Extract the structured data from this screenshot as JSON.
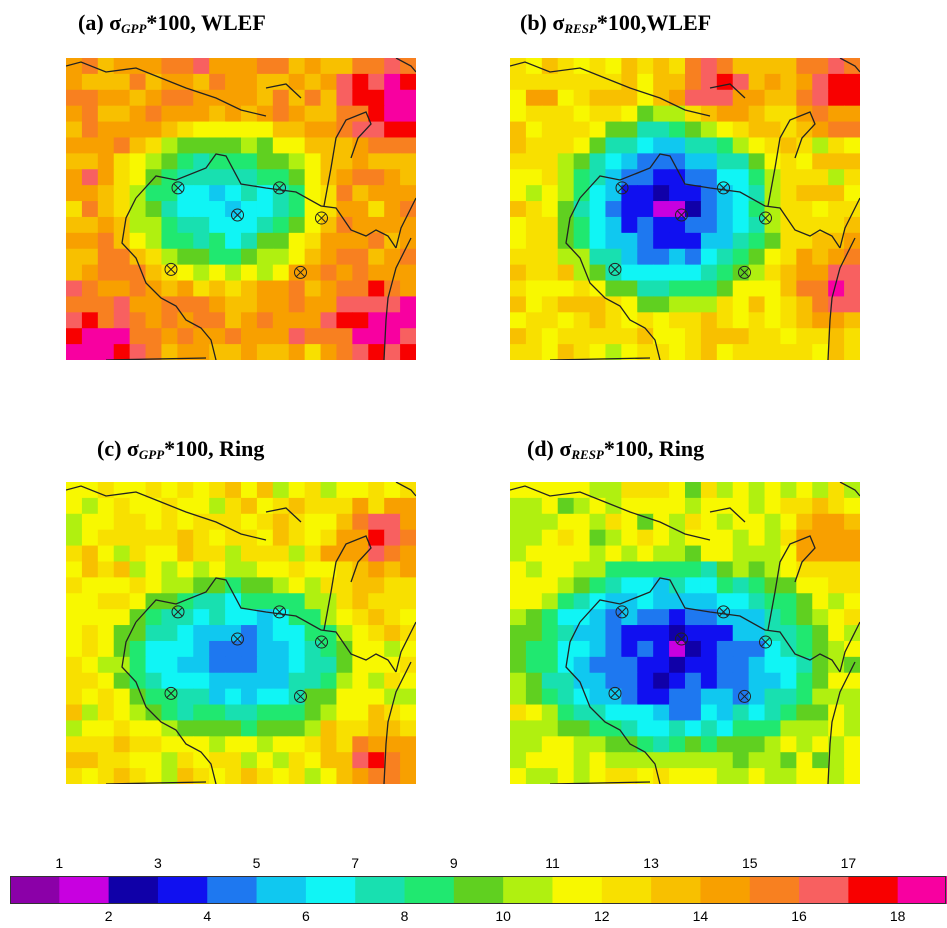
{
  "panels": [
    {
      "id": "a",
      "title_prefix": "(a) σ",
      "title_sub": "GPP",
      "title_suffix": "*100, WLEF"
    },
    {
      "id": "b",
      "title_prefix": "(b) σ",
      "title_sub": "RESP",
      "title_suffix": "*100,WLEF"
    },
    {
      "id": "c",
      "title_prefix": "(c) σ",
      "title_sub": "GPP",
      "title_suffix": "*100, Ring"
    },
    {
      "id": "d",
      "title_prefix": "(d) σ",
      "title_sub": "RESP",
      "title_suffix": "*100, Ring"
    }
  ],
  "colorbar": {
    "top_labels": [
      "1",
      "3",
      "5",
      "7",
      "9",
      "11",
      "13",
      "15",
      "17"
    ],
    "bottom_labels": [
      "2",
      "4",
      "6",
      "8",
      "10",
      "12",
      "14",
      "16",
      "18"
    ],
    "colors": [
      "#8B00A8",
      "#C800E0",
      "#1000A8",
      "#1010F0",
      "#1E78F0",
      "#10C8F0",
      "#10F5F5",
      "#18E0B0",
      "#20E870",
      "#60D020",
      "#B0F010",
      "#F8F800",
      "#F8E000",
      "#F8C000",
      "#F8A000",
      "#F88020",
      "#F86060",
      "#F80000",
      "#F800A0"
    ]
  },
  "chart_data": {
    "type": "heatmap",
    "panels": [
      {
        "id": "a",
        "title": "(a) σGPP*100, WLEF",
        "typical_center_value": 6,
        "typical_edge_value": 14,
        "max_value": 18
      },
      {
        "id": "b",
        "title": "(b) σRESP*100,WLEF",
        "typical_center_value": 3,
        "typical_edge_value": 12,
        "max_value": 18
      },
      {
        "id": "c",
        "title": "(c) σGPP*100, Ring",
        "typical_center_value": 5,
        "typical_edge_value": 12,
        "max_value": 18
      },
      {
        "id": "d",
        "title": "(d) σRESP*100, Ring",
        "typical_center_value": 3,
        "typical_edge_value": 11,
        "max_value": 17
      }
    ],
    "colorbar_levels": [
      1,
      2,
      3,
      4,
      5,
      6,
      7,
      8,
      9,
      10,
      11,
      12,
      13,
      14,
      15,
      16,
      17,
      18
    ],
    "tower_sites_marked": 6
  }
}
